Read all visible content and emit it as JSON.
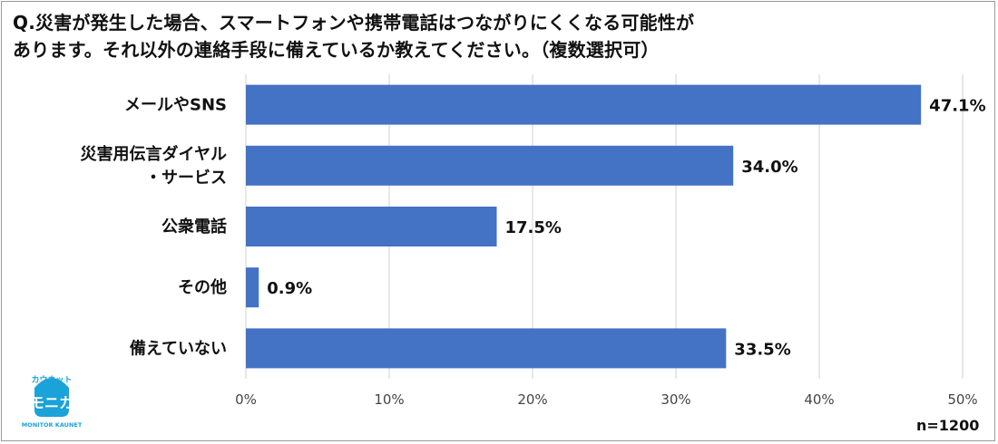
{
  "title_lines": [
    "Q.災害が発生した場合、スマートフォンや携帯電話はつながりにくくなる可能性が",
    "あります。それ以外の連絡手段に備えているか教えてください。（複数選択可）"
  ],
  "sample_size_label": "n=1200",
  "logo": {
    "top_text": "カウネット",
    "main_text": "モニカ",
    "sub_text": "MONITOR KAUNET",
    "color": "#1aa3d9"
  },
  "colors": {
    "bar": "#4472c4",
    "grid": "#d9d9d9"
  },
  "chart_data": {
    "type": "bar",
    "orientation": "horizontal",
    "categories": [
      [
        "メールやSNS"
      ],
      [
        "災害用伝言ダイヤル",
        "・サービス"
      ],
      [
        "公衆電話"
      ],
      [
        "その他"
      ],
      [
        "備えていない"
      ]
    ],
    "values": [
      47.1,
      34.0,
      17.5,
      0.9,
      33.5
    ],
    "value_labels": [
      "47.1%",
      "34.0%",
      "17.5%",
      "0.9%",
      "33.5%"
    ],
    "xlim": [
      0,
      50
    ],
    "xticks": [
      0,
      10,
      20,
      30,
      40,
      50
    ],
    "xtick_labels": [
      "0%",
      "10%",
      "20%",
      "30%",
      "40%",
      "50%"
    ],
    "grid": true,
    "legend": "none"
  }
}
